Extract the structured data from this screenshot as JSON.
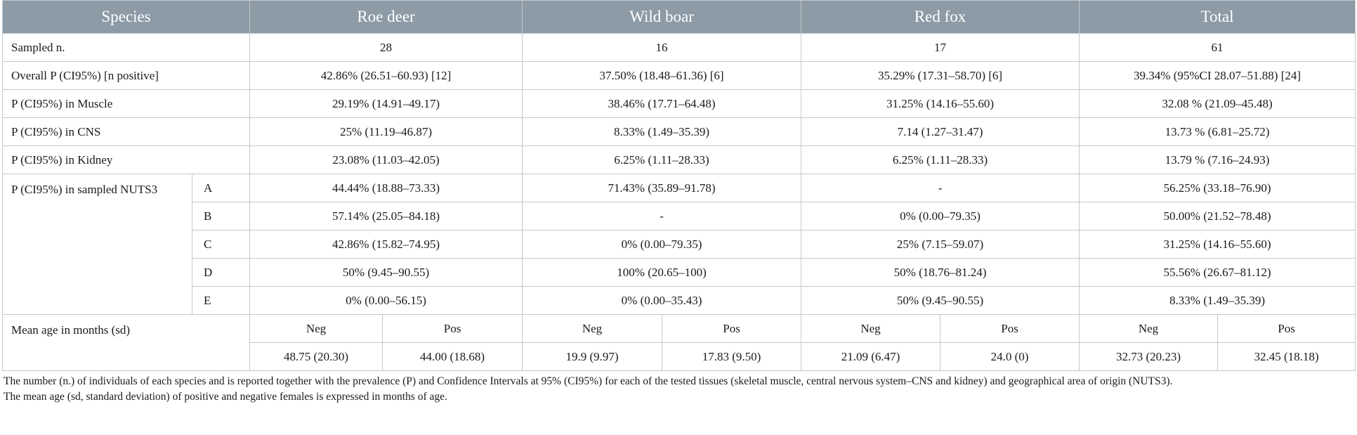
{
  "header": {
    "species": "Species",
    "cols": [
      "Roe deer",
      "Wild boar",
      "Red fox",
      "Total"
    ]
  },
  "rows": {
    "sampled": {
      "label": "Sampled n.",
      "values": [
        "28",
        "16",
        "17",
        "61"
      ]
    },
    "overall": {
      "label": "Overall P (CI95%) [n positive]",
      "values": [
        "42.86% (26.51–60.93) [12]",
        "37.50% (18.48–61.36) [6]",
        "35.29% (17.31–58.70) [6]",
        "39.34% (95%CI 28.07–51.88) [24]"
      ]
    },
    "muscle": {
      "label": "P (CI95%) in Muscle",
      "values": [
        "29.19% (14.91–49.17)",
        "38.46% (17.71–64.48)",
        "31.25% (14.16–55.60)",
        "32.08 % (21.09–45.48)"
      ]
    },
    "cns": {
      "label": "P (CI95%) in CNS",
      "values": [
        "25% (11.19–46.87)",
        "8.33% (1.49–35.39)",
        "7.14 (1.27–31.47)",
        "13.73 % (6.81–25.72)"
      ]
    },
    "kidney": {
      "label": "P (CI95%) in Kidney",
      "values": [
        "23.08% (11.03–42.05)",
        "6.25% (1.11–28.33)",
        "6.25% (1.11–28.33)",
        "13.79 % (7.16–24.93)"
      ]
    }
  },
  "nuts": {
    "label": "P (CI95%) in sampled NUTS3",
    "rows": [
      {
        "area": "A",
        "values": [
          "44.44% (18.88–73.33)",
          "71.43% (35.89–91.78)",
          "-",
          "56.25% (33.18–76.90)"
        ]
      },
      {
        "area": "B",
        "values": [
          "57.14% (25.05–84.18)",
          "-",
          "0% (0.00–79.35)",
          "50.00% (21.52–78.48)"
        ]
      },
      {
        "area": "C",
        "values": [
          "42.86% (15.82–74.95)",
          "0% (0.00–79.35)",
          "25% (7.15–59.07)",
          "31.25% (14.16–55.60)"
        ]
      },
      {
        "area": "D",
        "values": [
          "50% (9.45–90.55)",
          "100% (20.65–100)",
          "50% (18.76–81.24)",
          "55.56% (26.67–81.12)"
        ]
      },
      {
        "area": "E",
        "values": [
          "0% (0.00–56.15)",
          "0% (0.00–35.43)",
          "50% (9.45–90.55)",
          "8.33% (1.49–35.39)"
        ]
      }
    ]
  },
  "age": {
    "label": "Mean age in months (sd)",
    "neg": "Neg",
    "pos": "Pos",
    "values": [
      "48.75 (20.30)",
      "44.00 (18.68)",
      "19.9 (9.97)",
      "17.83 (9.50)",
      "21.09 (6.47)",
      "24.0 (0)",
      "32.73 (20.23)",
      "32.45 (18.18)"
    ]
  },
  "footnote": {
    "line1": "The number (n.) of individuals of each species and is reported together with the prevalence (P) and Confidence Intervals at 95% (CI95%) for each of the tested tissues (skeletal muscle, central nervous system–CNS and kidney) and geographical area of origin (NUTS3).",
    "line2": "The mean age (sd, standard deviation) of positive and negative females is expressed in months of age."
  }
}
